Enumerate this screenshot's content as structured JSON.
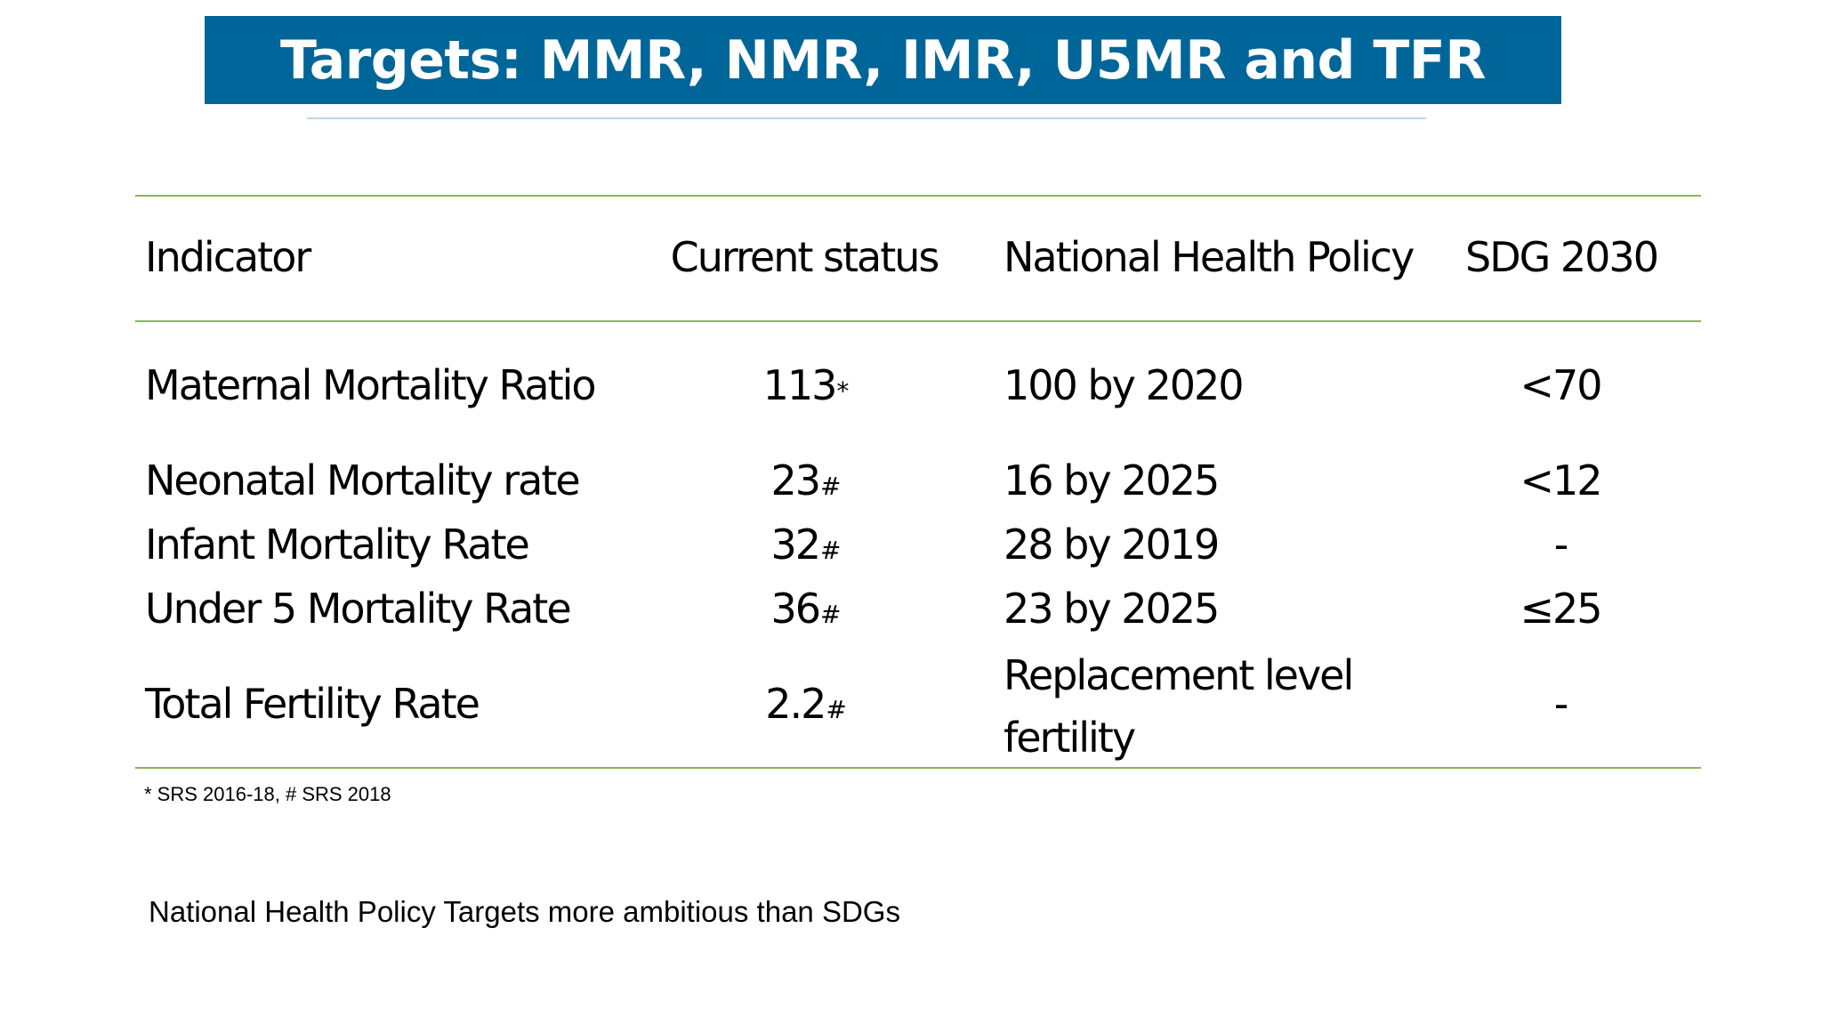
{
  "slide": {
    "title": "Targets: MMR, NMR, IMR, U5MR and TFR",
    "footnote": "* SRS 2016-18, # SRS 2018",
    "note": "National Health Policy Targets more ambitious than SDGs",
    "colors": {
      "banner": "#006699",
      "rule": "#8ab75a",
      "title_rule": "#bcd6ea"
    }
  },
  "table": {
    "headers": {
      "indicator": "Indicator",
      "current": "Current status",
      "policy": "National Health Policy",
      "sdg": "SDG 2030"
    },
    "rows": [
      {
        "indicator": "Maternal Mortality Ratio",
        "current": "113",
        "mark": "*",
        "policy": "100 by 2020",
        "policy2": "",
        "sdg": "<70"
      },
      {
        "indicator": "Neonatal Mortality rate",
        "current": "23",
        "mark": "#",
        "policy": "16 by 2025",
        "policy2": "",
        "sdg": "<12"
      },
      {
        "indicator": "Infant Mortality Rate",
        "current": "32",
        "mark": "#",
        "policy": "28 by 2019",
        "policy2": "",
        "sdg": "-"
      },
      {
        "indicator": "Under 5 Mortality Rate",
        "current": "36",
        "mark": "#",
        "policy": "23 by 2025",
        "policy2": "",
        "sdg": "≤25"
      },
      {
        "indicator": "Total Fertility Rate",
        "current": "2.2",
        "mark": "#",
        "policy": "Replacement level",
        "policy2": "fertility",
        "sdg": "-"
      }
    ]
  }
}
